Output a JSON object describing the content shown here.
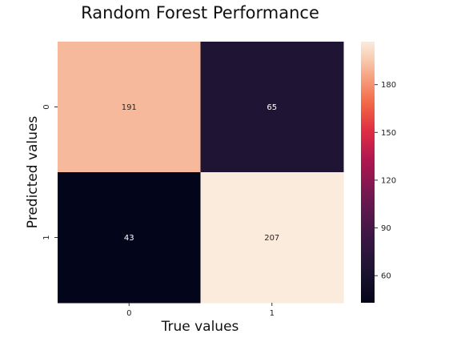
{
  "chart_data": {
    "type": "heatmap",
    "title": "Random Forest Performance",
    "xlabel": "True values",
    "ylabel": "Predicted values",
    "x_categories": [
      "0",
      "1"
    ],
    "y_categories": [
      "0",
      "1"
    ],
    "values": [
      [
        191,
        65
      ],
      [
        43,
        207
      ]
    ],
    "colormap": "rocket",
    "colorbar": {
      "min": 43,
      "max": 207,
      "ticks": [
        60,
        90,
        120,
        150,
        180
      ],
      "tick_labels": [
        "60",
        "90",
        "120",
        "150",
        "180"
      ]
    },
    "grid": false,
    "legend": "colorbar-right"
  }
}
